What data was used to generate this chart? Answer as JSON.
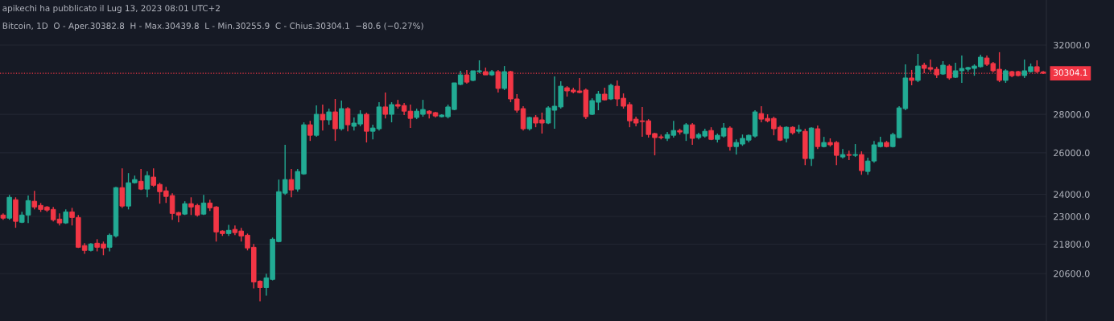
{
  "chart_data": {
    "type": "candlestick",
    "title": "apikechi ha pubblicato il Lug 13, 2023 08:01 UTC+2",
    "subtitle": "Bitcoin, 1D  O - Aper.30382.8  H - Max.30439.8  L - Min.30255.9  C - Chius.30304.1  −80.6 (−0.27%)",
    "categories": [
      null,
      null,
      null,
      null,
      null,
      null,
      null,
      null,
      null,
      null,
      null,
      null,
      null,
      null,
      null,
      null,
      null,
      null,
      null,
      null,
      null,
      null,
      null,
      null,
      null,
      null,
      null,
      null,
      null,
      null,
      null,
      null,
      null,
      null,
      null,
      null,
      null,
      null,
      null,
      null,
      null,
      null,
      null,
      null,
      null,
      null,
      null,
      null,
      null,
      null,
      null,
      null,
      null,
      null,
      null,
      null,
      null,
      null,
      null,
      null,
      null,
      null,
      null,
      null,
      null,
      null,
      null,
      null,
      null,
      null,
      null,
      null,
      null,
      null,
      null,
      null,
      null,
      null,
      null,
      null,
      null,
      null,
      null,
      null,
      null,
      null,
      null,
      null,
      null,
      null,
      null,
      null,
      null,
      null,
      null,
      null,
      null,
      null,
      null,
      null,
      null,
      null,
      null,
      null,
      null,
      null,
      null,
      null,
      null,
      null,
      null,
      null,
      null,
      null,
      null,
      null,
      null,
      null,
      null,
      null,
      null,
      null,
      null,
      null,
      null,
      null,
      null,
      null,
      null,
      null,
      null,
      null,
      null,
      null,
      null,
      null,
      null,
      null,
      null,
      null,
      null,
      null,
      null,
      null,
      null,
      null,
      null,
      null,
      null,
      null,
      null,
      null,
      null,
      null,
      null,
      null,
      null,
      null,
      null,
      null,
      null,
      null,
      null,
      null,
      null,
      null,
      null
    ],
    "ohlc": [
      [
        23060,
        23130,
        22850,
        22920
      ],
      [
        22920,
        23970,
        22850,
        23860
      ],
      [
        23750,
        23860,
        22500,
        22780
      ],
      [
        22740,
        23200,
        22710,
        23060
      ],
      [
        23060,
        23940,
        22710,
        23710
      ],
      [
        23680,
        24160,
        23310,
        23420
      ],
      [
        23490,
        23600,
        23200,
        23310
      ],
      [
        23420,
        23460,
        23200,
        23280
      ],
      [
        23310,
        23420,
        22780,
        22850
      ],
      [
        22880,
        23130,
        22600,
        22710
      ],
      [
        22710,
        23310,
        22670,
        23200
      ],
      [
        23200,
        23380,
        22600,
        22950
      ],
      [
        22950,
        23060,
        21640,
        21670
      ],
      [
        21740,
        21840,
        21400,
        21540
      ],
      [
        21540,
        21840,
        21500,
        21810
      ],
      [
        21840,
        22010,
        21500,
        21670
      ],
      [
        21810,
        21910,
        21340,
        21640
      ],
      [
        21670,
        22250,
        21500,
        22180
      ],
      [
        22150,
        24350,
        22080,
        24310
      ],
      [
        24310,
        25230,
        23380,
        23460
      ],
      [
        23460,
        25000,
        23310,
        24540
      ],
      [
        24540,
        24880,
        24500,
        24690
      ],
      [
        24610,
        25200,
        24200,
        24240
      ],
      [
        24240,
        25080,
        23860,
        24880
      ],
      [
        24810,
        25230,
        24350,
        24420
      ],
      [
        24460,
        24540,
        23570,
        24120
      ],
      [
        24160,
        24350,
        23600,
        23900
      ],
      [
        23940,
        24050,
        22850,
        23130
      ],
      [
        23170,
        23200,
        22740,
        23060
      ],
      [
        23100,
        23680,
        23060,
        23570
      ],
      [
        23570,
        23860,
        23060,
        23420
      ],
      [
        23490,
        23570,
        22990,
        23060
      ],
      [
        23100,
        23970,
        23060,
        23600
      ],
      [
        23600,
        23750,
        23240,
        23380
      ],
      [
        23420,
        23460,
        21910,
        22320
      ],
      [
        22360,
        22390,
        22150,
        22250
      ],
      [
        22250,
        22630,
        22150,
        22390
      ],
      [
        22430,
        22600,
        22180,
        22290
      ],
      [
        22360,
        22500,
        21910,
        22150
      ],
      [
        22180,
        22250,
        21540,
        21640
      ],
      [
        21670,
        21810,
        20020,
        20270
      ],
      [
        20300,
        20330,
        19530,
        20050
      ],
      [
        20050,
        20590,
        19740,
        20430
      ],
      [
        20370,
        22080,
        20330,
        22010
      ],
      [
        21910,
        24690,
        21880,
        24120
      ],
      [
        24050,
        26400,
        23970,
        24690
      ],
      [
        24690,
        25200,
        23860,
        24200
      ],
      [
        24240,
        25200,
        24120,
        25080
      ],
      [
        24960,
        27570,
        24920,
        27440
      ],
      [
        27440,
        27650,
        26600,
        26890
      ],
      [
        26890,
        28480,
        26810,
        28000
      ],
      [
        28000,
        28530,
        27140,
        27700
      ],
      [
        27700,
        28310,
        27440,
        28130
      ],
      [
        28130,
        28840,
        26600,
        27230
      ],
      [
        27230,
        28750,
        27140,
        28310
      ],
      [
        28310,
        28390,
        27100,
        27440
      ],
      [
        27360,
        27830,
        27140,
        27530
      ],
      [
        27480,
        28220,
        27360,
        28000
      ],
      [
        28000,
        28090,
        26520,
        27100
      ],
      [
        27100,
        27440,
        26680,
        27270
      ],
      [
        27230,
        28660,
        27140,
        28400
      ],
      [
        28400,
        29200,
        27780,
        28000
      ],
      [
        28000,
        28660,
        27570,
        28530
      ],
      [
        28530,
        28790,
        28310,
        28440
      ],
      [
        28480,
        28620,
        27960,
        28170
      ],
      [
        28170,
        28530,
        27270,
        27780
      ],
      [
        27830,
        28310,
        27740,
        28170
      ],
      [
        28000,
        28790,
        27870,
        28260
      ],
      [
        28170,
        28220,
        27780,
        28040
      ],
      [
        28090,
        28130,
        27830,
        27910
      ],
      [
        27870,
        28000,
        27830,
        27960
      ],
      [
        27870,
        28530,
        27780,
        28400
      ],
      [
        28260,
        29750,
        28220,
        29750
      ],
      [
        29660,
        30450,
        29610,
        30210
      ],
      [
        30210,
        30500,
        29700,
        29790
      ],
      [
        29890,
        30450,
        29840,
        30450
      ],
      [
        30400,
        31070,
        30310,
        30450
      ],
      [
        30400,
        30640,
        30210,
        30210
      ],
      [
        30210,
        30500,
        30160,
        30400
      ],
      [
        30400,
        30500,
        29200,
        29430
      ],
      [
        29430,
        30730,
        29340,
        30400
      ],
      [
        30400,
        30450,
        28660,
        28840
      ],
      [
        28840,
        29110,
        28090,
        28220
      ],
      [
        28310,
        28440,
        27140,
        27230
      ],
      [
        27230,
        27870,
        27140,
        27830
      ],
      [
        27830,
        27960,
        27310,
        27530
      ],
      [
        27700,
        28090,
        26980,
        27530
      ],
      [
        27530,
        28440,
        27480,
        28350
      ],
      [
        28220,
        30120,
        27230,
        28440
      ],
      [
        28400,
        29840,
        28310,
        29560
      ],
      [
        29470,
        29560,
        28970,
        29290
      ],
      [
        29340,
        29470,
        29150,
        29240
      ],
      [
        29290,
        30030,
        29150,
        29200
      ],
      [
        29340,
        29430,
        27740,
        27870
      ],
      [
        28000,
        28880,
        27960,
        28750
      ],
      [
        28660,
        29290,
        28220,
        29110
      ],
      [
        29110,
        29470,
        28750,
        28790
      ],
      [
        28840,
        29700,
        28790,
        29610
      ],
      [
        29560,
        29890,
        28440,
        28840
      ],
      [
        28880,
        29150,
        28310,
        28440
      ],
      [
        28530,
        28660,
        27310,
        27650
      ],
      [
        27740,
        27870,
        27360,
        27530
      ],
      [
        27650,
        28400,
        26810,
        27610
      ],
      [
        27650,
        27740,
        26770,
        26930
      ],
      [
        26980,
        27020,
        25870,
        26770
      ],
      [
        26810,
        26930,
        26680,
        26770
      ],
      [
        26730,
        27060,
        26600,
        26930
      ],
      [
        26890,
        27650,
        26770,
        27140
      ],
      [
        27140,
        27230,
        26930,
        27060
      ],
      [
        26980,
        27530,
        26600,
        27440
      ],
      [
        27440,
        27530,
        26400,
        26730
      ],
      [
        26770,
        27020,
        26680,
        26930
      ],
      [
        26850,
        27230,
        26770,
        27100
      ],
      [
        27140,
        27310,
        26640,
        26680
      ],
      [
        26680,
        26980,
        26520,
        26890
      ],
      [
        26850,
        27530,
        26770,
        27270
      ],
      [
        27270,
        27360,
        26110,
        26310
      ],
      [
        26310,
        26680,
        25910,
        26520
      ],
      [
        26440,
        26930,
        26350,
        26730
      ],
      [
        26640,
        26930,
        26520,
        26890
      ],
      [
        26850,
        28220,
        26770,
        28130
      ],
      [
        28040,
        28440,
        27570,
        27740
      ],
      [
        27780,
        28000,
        27570,
        27650
      ],
      [
        27780,
        27870,
        26890,
        27230
      ],
      [
        27310,
        27400,
        26600,
        26640
      ],
      [
        26730,
        27360,
        26520,
        27310
      ],
      [
        27310,
        27360,
        26930,
        27020
      ],
      [
        27100,
        27440,
        26980,
        27180
      ],
      [
        27100,
        27230,
        25390,
        25710
      ],
      [
        25710,
        27310,
        25350,
        27270
      ],
      [
        27230,
        27400,
        26190,
        26310
      ],
      [
        26310,
        26810,
        26270,
        26520
      ],
      [
        26520,
        26730,
        26310,
        26400
      ],
      [
        26520,
        26600,
        25390,
        25870
      ],
      [
        25790,
        26190,
        25710,
        25910
      ],
      [
        25910,
        26110,
        25630,
        25870
      ],
      [
        25870,
        26440,
        25790,
        25910
      ],
      [
        25910,
        26070,
        24920,
        25120
      ],
      [
        25080,
        25750,
        24920,
        25590
      ],
      [
        25590,
        26600,
        25510,
        26400
      ],
      [
        26310,
        26810,
        26270,
        26520
      ],
      [
        26520,
        26600,
        26270,
        26310
      ],
      [
        26310,
        27020,
        26270,
        26930
      ],
      [
        26770,
        28440,
        26730,
        28350
      ],
      [
        28310,
        30830,
        28220,
        30030
      ],
      [
        30030,
        30500,
        29610,
        29890
      ],
      [
        29890,
        31460,
        29790,
        30730
      ],
      [
        30780,
        30920,
        30310,
        30590
      ],
      [
        30640,
        31120,
        30400,
        30540
      ],
      [
        30540,
        30690,
        30030,
        30210
      ],
      [
        30260,
        31020,
        30210,
        30780
      ],
      [
        30730,
        30830,
        29930,
        30030
      ],
      [
        30070,
        30920,
        30030,
        30450
      ],
      [
        30450,
        31360,
        29750,
        30590
      ],
      [
        30540,
        30690,
        30400,
        30640
      ],
      [
        30590,
        30830,
        30160,
        30730
      ],
      [
        30690,
        31410,
        30640,
        31260
      ],
      [
        31210,
        31360,
        30730,
        30830
      ],
      [
        30880,
        30970,
        30350,
        30450
      ],
      [
        30540,
        31560,
        29790,
        29890
      ],
      [
        29890,
        30540,
        29750,
        30450
      ],
      [
        30400,
        30450,
        30070,
        30160
      ],
      [
        30400,
        30450,
        30120,
        30170
      ],
      [
        30170,
        31120,
        30030,
        30450
      ],
      [
        30400,
        30880,
        30350,
        30690
      ],
      [
        30690,
        31070,
        30310,
        30400
      ],
      [
        30382.8,
        30439.8,
        30255.9,
        30304.1
      ]
    ],
    "colors": [
      "#f23645",
      "#22ab94",
      "#f23645",
      "#22ab94",
      "#22ab94",
      "#f23645",
      "#f23645",
      "#f23645",
      "#f23645",
      "#f23645",
      "#22ab94",
      "#f23645",
      "#f23645",
      "#f23645",
      "#22ab94",
      "#f23645",
      "#f23645",
      "#22ab94",
      "#22ab94",
      "#f23645",
      "#22ab94",
      "#22ab94",
      "#f23645",
      "#22ab94",
      "#f23645",
      "#f23645",
      "#f23645",
      "#f23645",
      "#f23645",
      "#22ab94",
      "#f23645",
      "#f23645",
      "#22ab94",
      "#f23645",
      "#f23645",
      "#f23645",
      "#22ab94",
      "#f23645",
      "#f23645",
      "#f23645",
      "#f23645",
      "#f23645",
      "#22ab94",
      "#22ab94",
      "#22ab94",
      "#22ab94",
      "#f23645",
      "#22ab94",
      "#22ab94",
      "#f23645",
      "#22ab94",
      "#f23645",
      "#22ab94",
      "#f23645",
      "#22ab94",
      "#f23645",
      "#22ab94",
      "#22ab94",
      "#f23645",
      "#22ab94",
      "#22ab94",
      "#f23645",
      "#22ab94",
      "#f23645",
      "#f23645",
      "#f23645",
      "#22ab94",
      "#22ab94",
      "#f23645",
      "#f23645",
      "#22ab94",
      "#22ab94",
      "#22ab94",
      "#22ab94",
      "#f23645",
      "#22ab94",
      "#22ab94",
      "#f23645",
      "#22ab94",
      "#f23645",
      "#22ab94",
      "#f23645",
      "#f23645",
      "#f23645",
      "#22ab94",
      "#f23645",
      "#f23645",
      "#22ab94",
      "#22ab94",
      "#22ab94",
      "#f23645",
      "#f23645",
      "#f23645",
      "#f23645",
      "#22ab94",
      "#22ab94",
      "#f23645",
      "#22ab94",
      "#f23645",
      "#f23645",
      "#f23645",
      "#f23645",
      "#f23645",
      "#f23645",
      "#f23645",
      "#f23645",
      "#22ab94",
      "#22ab94",
      "#f23645",
      "#22ab94",
      "#f23645",
      "#22ab94",
      "#22ab94",
      "#f23645",
      "#22ab94",
      "#22ab94",
      "#f23645",
      "#22ab94",
      "#22ab94",
      "#22ab94",
      "#22ab94",
      "#f23645",
      "#f23645",
      "#f23645",
      "#f23645",
      "#22ab94",
      "#f23645",
      "#22ab94",
      "#f23645",
      "#22ab94",
      "#f23645",
      "#22ab94",
      "#f23645",
      "#f23645",
      "#22ab94",
      "#f23645",
      "#22ab94",
      "#f23645",
      "#22ab94",
      "#22ab94",
      "#22ab94",
      "#f23645",
      "#22ab94",
      "#22ab94",
      "#22ab94",
      "#f23645",
      "#22ab94",
      "#f23645",
      "#f23645",
      "#f23645",
      "#22ab94",
      "#f23645",
      "#22ab94",
      "#22ab94",
      "#22ab94",
      "#22ab94",
      "#22ab94",
      "#f23645",
      "#f23645",
      "#f23645",
      "#22ab94",
      "#f23645",
      "#f23645",
      "#22ab94",
      "#22ab94",
      "#f23645",
      "#f23645"
    ],
    "log": true,
    "ylim": [
      18800,
      34900
    ],
    "yticks": [
      {
        "value": 32000,
        "label": "32000.0"
      },
      {
        "value": 28000,
        "label": "28000.0"
      },
      {
        "value": 26000,
        "label": "26000.0"
      },
      {
        "value": 24000,
        "label": "24000.0"
      },
      {
        "value": 23000,
        "label": "23000.0"
      },
      {
        "value": 21800,
        "label": "21800.0"
      },
      {
        "value": 20600,
        "label": "20600.0"
      }
    ],
    "grid": "y",
    "ref_lines": [
      {
        "axis": "y",
        "value": 30304.1,
        "label": "30304.1",
        "color": "#f23645",
        "line_style": "dotted"
      }
    ]
  }
}
